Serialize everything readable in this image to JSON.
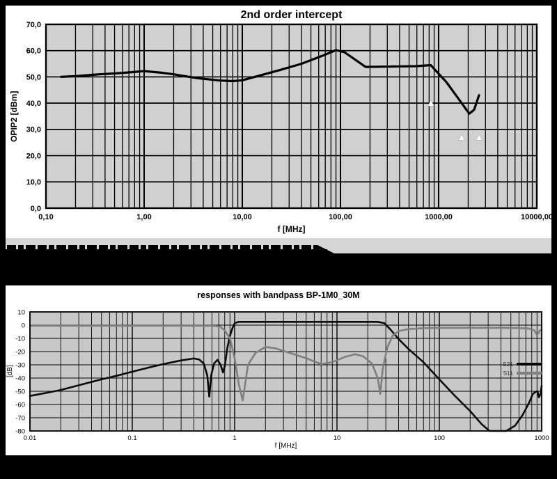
{
  "page": {
    "background": "#000000",
    "panel_background": "#ffffff"
  },
  "chart_data": [
    {
      "type": "line",
      "title": "2nd order intercept",
      "xlabel": "f [MHz]",
      "ylabel": "OPIP2 [dBm]",
      "xscale": "log",
      "xlim": [
        0.1,
        10000
      ],
      "ylim": [
        0,
        70
      ],
      "grid": "log-minor-vertical, major-horizontal",
      "plot_bg": "#d0d0d0",
      "x_tick_values": [
        0.1,
        1,
        10,
        100,
        1000,
        10000
      ],
      "x_tick_labels": [
        "0,10",
        "1,00",
        "10,00",
        "100,00",
        "1000,00",
        "10000,00"
      ],
      "y_tick_values": [
        70,
        60,
        50,
        40,
        30,
        20,
        10,
        0
      ],
      "y_tick_labels": [
        "70,0",
        "60,0",
        "50,0",
        "40,0",
        "30,0",
        "20,0",
        "10,0",
        "0,0"
      ],
      "series": [
        {
          "name": "OPIP2",
          "color": "#000000",
          "width": 3.2,
          "points": [
            [
              0.143,
              50
            ],
            [
              0.2,
              50.3
            ],
            [
              0.35,
              51
            ],
            [
              0.5,
              51.3
            ],
            [
              0.7,
              51.7
            ],
            [
              1.0,
              52.2
            ],
            [
              1.5,
              51.6
            ],
            [
              2,
              51
            ],
            [
              3.5,
              49.5
            ],
            [
              6,
              48.6
            ],
            [
              8,
              48.4
            ],
            [
              10,
              48.7
            ],
            [
              23,
              52.4
            ],
            [
              40,
              55
            ],
            [
              65,
              58
            ],
            [
              90,
              60.2
            ],
            [
              110,
              59.4
            ],
            [
              180,
              53.8
            ],
            [
              300,
              53.9
            ],
            [
              600,
              54.1
            ],
            [
              830,
              54.5
            ],
            [
              1200,
              48
            ],
            [
              2050,
              36
            ],
            [
              2300,
              37.5
            ],
            [
              2580,
              43
            ]
          ]
        }
      ],
      "markers": {
        "shape": "triangle-up",
        "color": "#ffffff",
        "points": [
          [
            835,
            39.8
          ],
          [
            1714,
            26.8
          ],
          [
            2580,
            26.8
          ]
        ]
      }
    },
    {
      "type": "line",
      "title": "responses with bandpass BP-1M0_30M",
      "xlabel": "f [MHz]",
      "ylabel": "[dB]",
      "xscale": "log",
      "xlim": [
        0.01,
        1000
      ],
      "ylim": [
        -80,
        10
      ],
      "grid": "log-minor-vertical, major-horizontal",
      "plot_bg": "#c8c8c8",
      "x_tick_values": [
        0.01,
        0.1,
        1,
        10,
        100,
        1000
      ],
      "x_tick_labels": [
        "0.01",
        "0.1",
        "1",
        "10",
        "100",
        "1000"
      ],
      "y_tick_values": [
        10,
        0,
        -10,
        -20,
        -30,
        -40,
        -50,
        -60,
        -70,
        -80
      ],
      "y_tick_labels": [
        "10",
        "0",
        "-10",
        "-20",
        "-30",
        "-40",
        "-50",
        "-60",
        "-70",
        "-80"
      ],
      "legend": {
        "position": "inside-right",
        "entries": [
          {
            "label": "S21",
            "color": "#000000"
          },
          {
            "label": "S11",
            "color": "#7f7f7f"
          }
        ]
      },
      "series": [
        {
          "name": "S21",
          "color": "#0a0a0a",
          "width": 2.6,
          "points": [
            [
              0.01,
              -53.5
            ],
            [
              0.015,
              -51
            ],
            [
              0.02,
              -49
            ],
            [
              0.03,
              -45.5
            ],
            [
              0.05,
              -41
            ],
            [
              0.07,
              -38.3
            ],
            [
              0.1,
              -35.2
            ],
            [
              0.15,
              -31.8
            ],
            [
              0.2,
              -29.5
            ],
            [
              0.3,
              -26.7
            ],
            [
              0.4,
              -25.2
            ],
            [
              0.45,
              -26
            ],
            [
              0.5,
              -29
            ],
            [
              0.54,
              -38
            ],
            [
              0.565,
              -54
            ],
            [
              0.59,
              -38
            ],
            [
              0.63,
              -29
            ],
            [
              0.68,
              -26.2
            ],
            [
              0.73,
              -30
            ],
            [
              0.77,
              -35.8
            ],
            [
              0.8,
              -31
            ],
            [
              0.85,
              -17
            ],
            [
              0.9,
              -8
            ],
            [
              0.95,
              -2.5
            ],
            [
              1.0,
              1.5
            ],
            [
              1.1,
              2.5
            ],
            [
              3,
              2.5
            ],
            [
              10,
              2.5
            ],
            [
              25,
              2.5
            ],
            [
              29,
              1.5
            ],
            [
              33,
              -3
            ],
            [
              40,
              -10.5
            ],
            [
              50,
              -18
            ],
            [
              70,
              -28
            ],
            [
              100,
              -41
            ],
            [
              140,
              -53
            ],
            [
              200,
              -65
            ],
            [
              260,
              -75
            ],
            [
              310,
              -80
            ],
            [
              450,
              -80
            ],
            [
              550,
              -76
            ],
            [
              650,
              -68
            ],
            [
              750,
              -59
            ],
            [
              820,
              -52
            ],
            [
              870,
              -50.5
            ],
            [
              910,
              -50
            ],
            [
              940,
              -54.5
            ],
            [
              975,
              -52
            ],
            [
              1000,
              -46
            ]
          ]
        },
        {
          "name": "S11",
          "color": "#7f7f7f",
          "width": 2.6,
          "points": [
            [
              0.01,
              -0.5
            ],
            [
              0.5,
              -0.5
            ],
            [
              0.6,
              -0.5
            ],
            [
              0.72,
              -1
            ],
            [
              0.8,
              -4
            ],
            [
              0.9,
              -10
            ],
            [
              1.0,
              -25
            ],
            [
              1.1,
              -45
            ],
            [
              1.2,
              -57
            ],
            [
              1.35,
              -30
            ],
            [
              1.6,
              -21
            ],
            [
              2,
              -16.5
            ],
            [
              2.5,
              -17.5
            ],
            [
              3,
              -19.5
            ],
            [
              5,
              -25
            ],
            [
              7,
              -29.5
            ],
            [
              9,
              -28
            ],
            [
              12,
              -24
            ],
            [
              15,
              -22
            ],
            [
              18,
              -23.5
            ],
            [
              22,
              -29
            ],
            [
              25,
              -40
            ],
            [
              26.5,
              -52
            ],
            [
              28,
              -33
            ],
            [
              31,
              -17
            ],
            [
              35,
              -8
            ],
            [
              40,
              -4.5
            ],
            [
              50,
              -3
            ],
            [
              70,
              -2.3
            ],
            [
              100,
              -2
            ],
            [
              200,
              -2
            ],
            [
              400,
              -2
            ],
            [
              600,
              -2.2
            ],
            [
              750,
              -2.6
            ],
            [
              850,
              -4
            ],
            [
              900,
              -7.5
            ],
            [
              930,
              -6
            ],
            [
              960,
              -4
            ],
            [
              1000,
              -3.6
            ]
          ]
        }
      ]
    }
  ]
}
